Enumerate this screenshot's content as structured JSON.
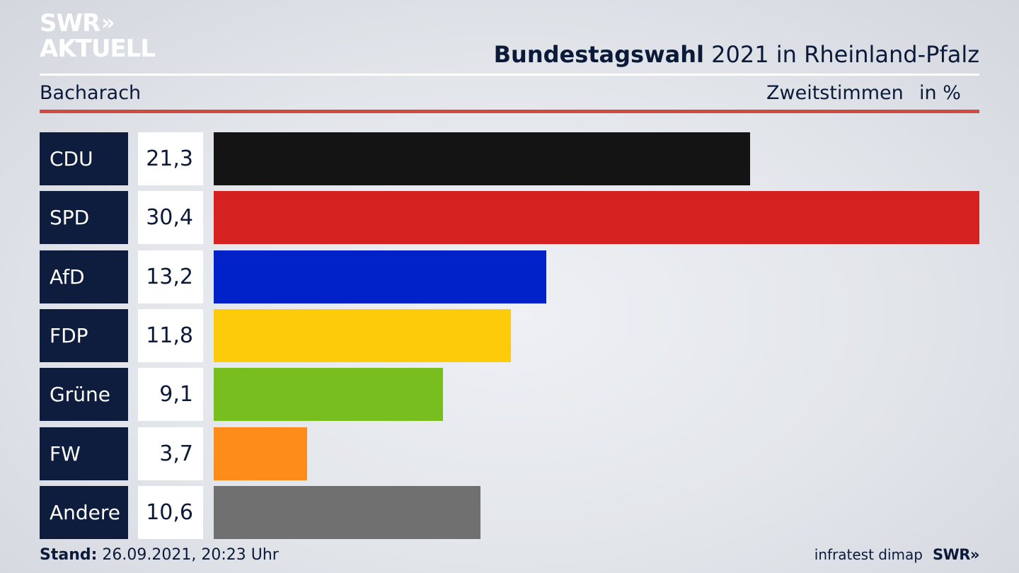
{
  "logo": {
    "line1": "SWR",
    "arrows": "»",
    "line2": "AKTUELL"
  },
  "header": {
    "title_bold": "Bundestagswahl",
    "title_rest": " 2021 in Rheinland-Pfalz",
    "region": "Bacharach",
    "vote_type": "Zweitstimmen",
    "unit": "in %"
  },
  "chart_data": {
    "type": "bar",
    "orientation": "horizontal",
    "categories": [
      "CDU",
      "SPD",
      "AfD",
      "FDP",
      "Grüne",
      "FW",
      "Andere"
    ],
    "values": [
      21.3,
      30.4,
      13.2,
      11.8,
      9.1,
      3.7,
      10.6
    ],
    "value_labels": [
      "21,3",
      "30,4",
      "13,2",
      "11,8",
      "9,1",
      "3,7",
      "10,6"
    ],
    "colors": [
      "#141414",
      "#d52221",
      "#0022c8",
      "#fdcb0a",
      "#78be1e",
      "#fd8c1a",
      "#707070"
    ],
    "title": "Bundestagswahl 2021 in Rheinland-Pfalz",
    "xlim": [
      0,
      30.4
    ]
  },
  "footer": {
    "stand_label": "Stand:",
    "stand_value": " 26.09.2021, 20:23 Uhr",
    "source": "infratest dimap",
    "brand": "SWR»"
  }
}
